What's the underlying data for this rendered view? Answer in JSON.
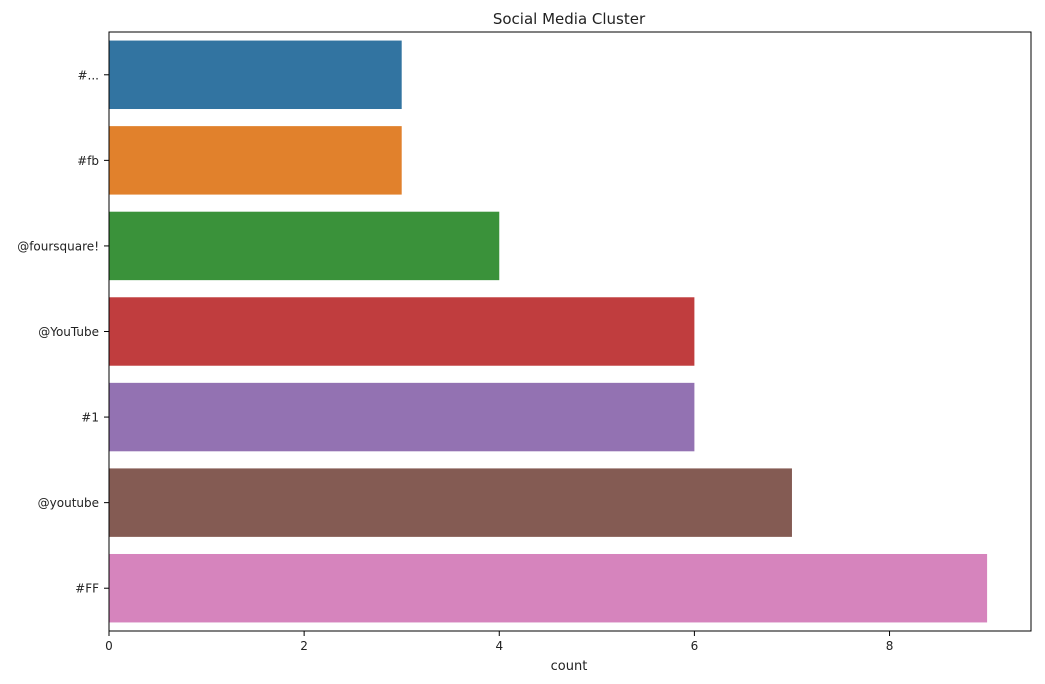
{
  "chart_data": {
    "type": "bar",
    "orientation": "horizontal",
    "title": "Social Media Cluster",
    "xlabel": "count",
    "ylabel": "",
    "xlim": [
      0,
      9.45
    ],
    "xticks": [
      0,
      2,
      4,
      6,
      8
    ],
    "grid": false,
    "categories": [
      "#...",
      "#fb",
      "@foursquare!",
      "@YouTube",
      "#1",
      "@youtube",
      "#FF"
    ],
    "values": [
      3,
      3,
      4,
      6,
      6,
      7,
      9
    ],
    "colors": [
      "#3274a1",
      "#e1812c",
      "#3a923a",
      "#c03d3e",
      "#9372b2",
      "#845b53",
      "#d684bd"
    ]
  }
}
